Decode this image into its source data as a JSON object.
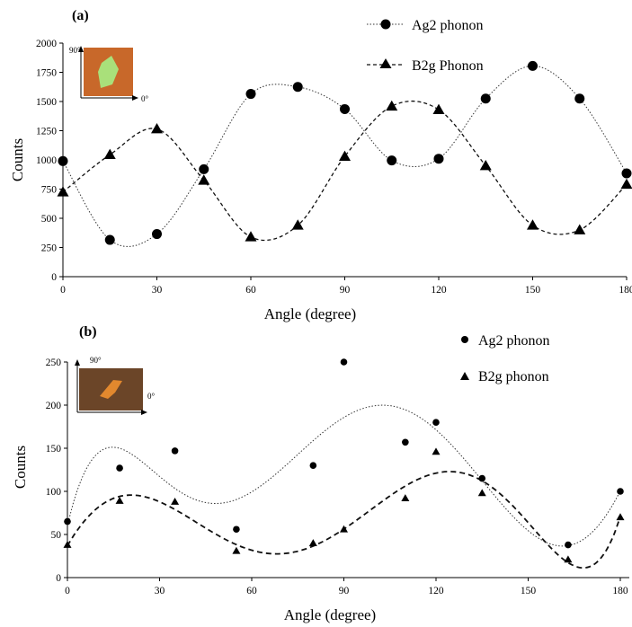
{
  "chart_data": [
    {
      "panel": "(a)",
      "type": "scatter",
      "xlabel": "Angle (degree)",
      "ylabel": "Counts",
      "xlim": [
        0,
        180
      ],
      "ylim": [
        0,
        2000
      ],
      "xticks": [
        "0",
        "30",
        "60",
        "90",
        "120",
        "150",
        "180"
      ],
      "yticks": [
        "0",
        "250",
        "500",
        "750",
        "1000",
        "1250",
        "1500",
        "1750",
        "2000"
      ],
      "grid": false,
      "legend_position": "top-right",
      "inset": {
        "angle_90": "90°",
        "angle_0": "0°",
        "flake_color": "#a9e07a",
        "substrate_color": "#c8682a"
      },
      "series": [
        {
          "name": "Ag2 phonon",
          "marker": "circle",
          "fit": "dotted",
          "x": [
            0,
            15,
            30,
            45,
            60,
            75,
            90,
            105,
            120,
            135,
            150,
            165,
            180
          ],
          "y": [
            990,
            315,
            365,
            920,
            1565,
            1625,
            1435,
            995,
            1010,
            1525,
            1805,
            1525,
            885
          ]
        },
        {
          "name": "B2g Phonon",
          "marker": "triangle",
          "fit": "dashed",
          "x": [
            0,
            15,
            30,
            45,
            60,
            75,
            90,
            105,
            120,
            135,
            150,
            165,
            180
          ],
          "y": [
            725,
            1045,
            1265,
            825,
            340,
            440,
            1030,
            1460,
            1430,
            950,
            440,
            400,
            790
          ]
        }
      ]
    },
    {
      "panel": "(b)",
      "type": "scatter",
      "xlabel": "Angle (degree)",
      "ylabel": "Counts",
      "xlim": [
        0,
        180
      ],
      "ylim": [
        0,
        250
      ],
      "xticks": [
        "0",
        "30",
        "60",
        "90",
        "120",
        "150",
        "180"
      ],
      "yticks": [
        "0",
        "50",
        "100",
        "150",
        "200",
        "250"
      ],
      "grid": false,
      "legend_position": "top-right",
      "inset": {
        "angle_90": "90°",
        "angle_0": "0°",
        "flake_color": "#e2882e",
        "substrate_color": "#6b4528"
      },
      "series": [
        {
          "name": "Ag2 phonon",
          "marker": "circle",
          "fit": "dotted",
          "x": [
            0,
            17,
            35,
            55,
            80,
            90,
            110,
            120,
            135,
            163,
            180
          ],
          "y": [
            65,
            127,
            147,
            56,
            130,
            250,
            157,
            180,
            115,
            38,
            100
          ]
        },
        {
          "name": "B2g phonon",
          "marker": "triangle",
          "fit": "dashed",
          "x": [
            0,
            17,
            35,
            55,
            80,
            90,
            110,
            120,
            135,
            163,
            180
          ],
          "y": [
            38,
            89,
            88,
            31,
            40,
            56,
            92,
            146,
            98,
            21,
            70
          ]
        }
      ]
    }
  ]
}
